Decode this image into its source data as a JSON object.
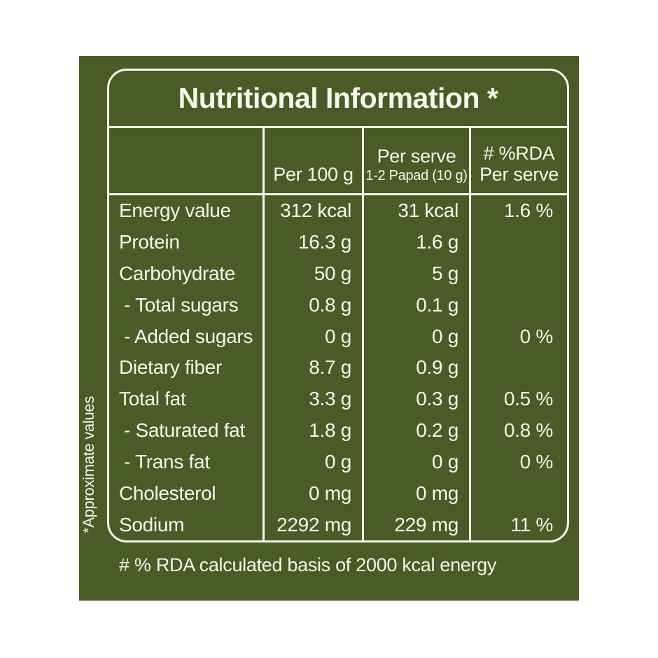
{
  "label": {
    "title": "Nutritional Information *",
    "side_note": "*Approximate values",
    "footnote": "# % RDA calculated basis of 2000 kcal energy",
    "colors": {
      "background_green": "#4a5b27",
      "line_and_text": "#f7f5ec",
      "page_background": "#ffffff"
    },
    "columns": {
      "col2_line1": "Per 100 g",
      "col3_line1": "Per serve",
      "col3_line2": "1-2 Papad (10 g)",
      "col4_line1": "# %RDA",
      "col4_line2": "Per serve"
    },
    "rows": [
      {
        "name": "Energy value",
        "per100": "312 kcal",
        "perServe": "31 kcal",
        "rda": "1.6 %",
        "indent": false
      },
      {
        "name": "Protein",
        "per100": "16.3 g",
        "perServe": "1.6 g",
        "rda": "",
        "indent": false
      },
      {
        "name": "Carbohydrate",
        "per100": "50 g",
        "perServe": "5 g",
        "rda": "",
        "indent": false
      },
      {
        "name": "- Total sugars",
        "per100": "0.8 g",
        "perServe": "0.1 g",
        "rda": "",
        "indent": true
      },
      {
        "name": "- Added sugars",
        "per100": "0 g",
        "perServe": "0 g",
        "rda": "0 %",
        "indent": true
      },
      {
        "name": "Dietary fiber",
        "per100": "8.7 g",
        "perServe": "0.9 g",
        "rda": "",
        "indent": false
      },
      {
        "name": "Total fat",
        "per100": "3.3 g",
        "perServe": "0.3 g",
        "rda": "0.5 %",
        "indent": false
      },
      {
        "name": "- Saturated fat",
        "per100": "1.8 g",
        "perServe": "0.2 g",
        "rda": "0.8 %",
        "indent": true
      },
      {
        "name": "- Trans fat",
        "per100": "0 g",
        "perServe": "0 g",
        "rda": "0 %",
        "indent": true
      },
      {
        "name": "Cholesterol",
        "per100": "0 mg",
        "perServe": "0 mg",
        "rda": "",
        "indent": false
      },
      {
        "name": "Sodium",
        "per100": "2292 mg",
        "perServe": "229 mg",
        "rda": "11 %",
        "indent": false
      }
    ]
  }
}
